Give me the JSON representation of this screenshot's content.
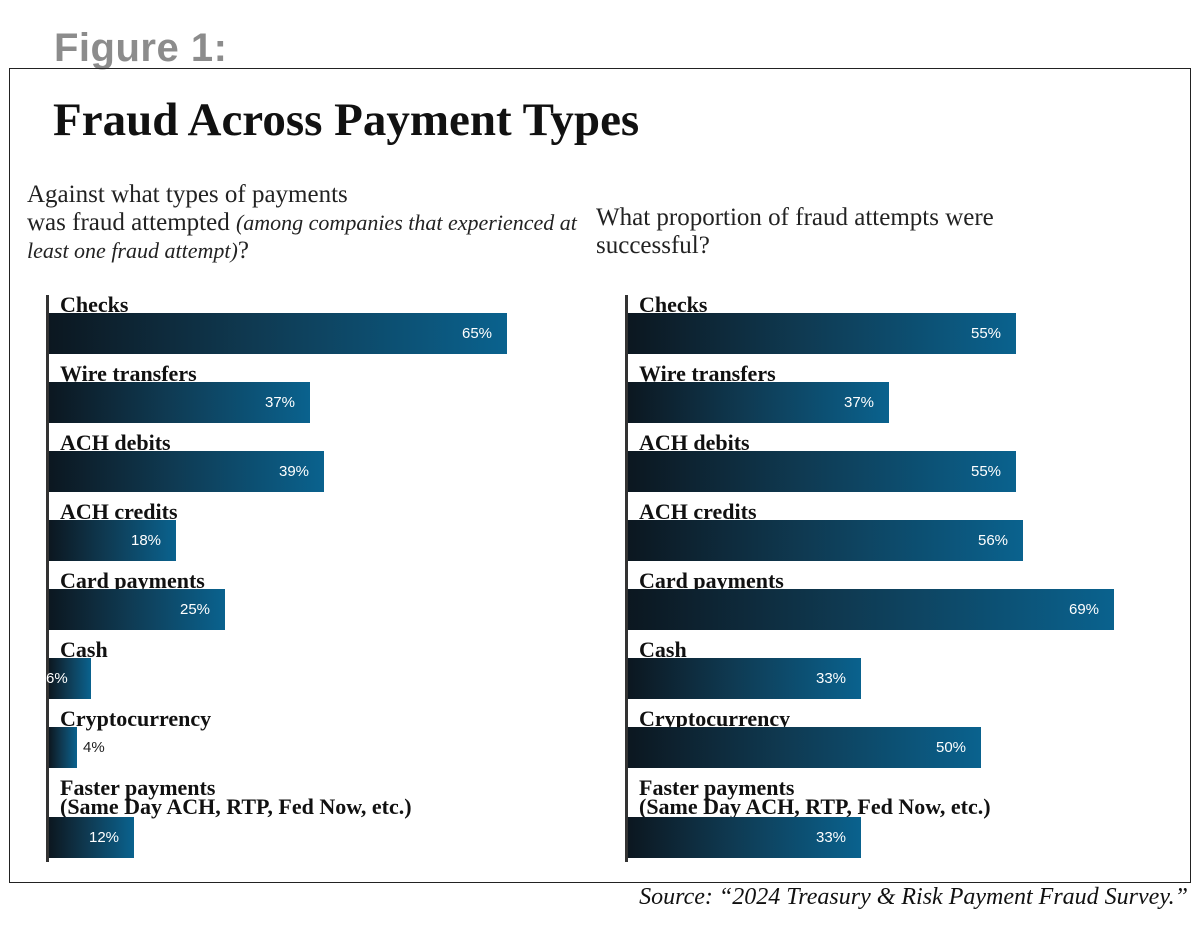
{
  "figure_label": "Figure 1:",
  "title": "Fraud Across Payment Types",
  "source": "Source: “2024 Treasury & Risk Payment Fraud Survey.”",
  "colors": {
    "bar_start": "#0c1720",
    "bar_end": "#0a628e",
    "label_gray": "#8c8c8c"
  },
  "chart_data": [
    {
      "type": "bar",
      "orientation": "horizontal",
      "question": {
        "main_1": "Against what types of payments",
        "main_2": "was fraud attempted ",
        "note": "(among companies that experienced at least one fraud attempt)",
        "end": "?"
      },
      "categories": [
        "Checks",
        "Wire transfers",
        "ACH debits",
        "ACH credits",
        "Card payments",
        "Cash",
        "Cryptocurrency",
        "Faster payments\n(Same Day ACH, RTP, Fed Now, etc.)"
      ],
      "values": [
        65,
        37,
        39,
        18,
        25,
        6,
        4,
        12
      ],
      "value_labels": [
        "65%",
        "37%",
        "39%",
        "18%",
        "25%",
        "6%",
        "4%",
        "12%"
      ],
      "unit": "%",
      "xlim": [
        0,
        100
      ]
    },
    {
      "type": "bar",
      "orientation": "horizontal",
      "question": {
        "main_1": "What proportion of fraud attempts were",
        "main_2": "successful?",
        "note": "",
        "end": ""
      },
      "categories": [
        "Checks",
        "Wire transfers",
        "ACH debits",
        "ACH credits",
        "Card payments",
        "Cash",
        "Cryptocurrency",
        "Faster payments\n(Same Day ACH, RTP, Fed Now, etc.)"
      ],
      "values": [
        55,
        37,
        55,
        56,
        69,
        33,
        50,
        33
      ],
      "value_labels": [
        "55%",
        "37%",
        "55%",
        "56%",
        "69%",
        "33%",
        "50%",
        "33%"
      ],
      "unit": "%",
      "xlim": [
        0,
        100
      ]
    }
  ]
}
